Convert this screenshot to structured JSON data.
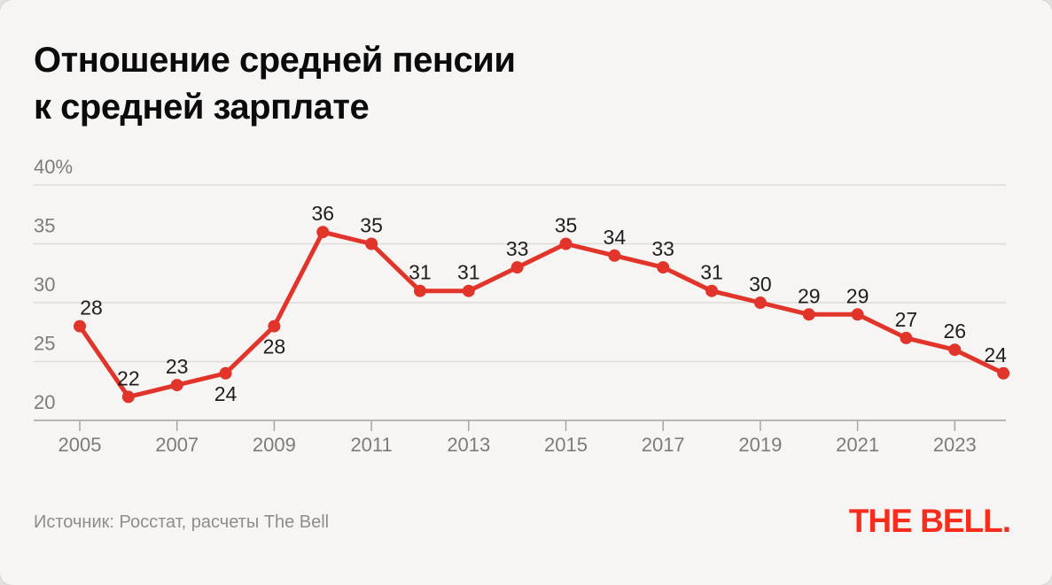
{
  "title": {
    "line1": "Отношение средней пенсии",
    "line2": "к средней зарплате"
  },
  "chart_data": {
    "type": "line",
    "title": "Отношение средней пенсии к средней зарплате",
    "xlabel": "",
    "ylabel": "",
    "unit": "%",
    "x": [
      2005,
      2006,
      2007,
      2008,
      2009,
      2010,
      2011,
      2012,
      2013,
      2014,
      2015,
      2016,
      2017,
      2018,
      2019,
      2020,
      2021,
      2022,
      2023,
      2024
    ],
    "values": [
      28,
      22,
      23,
      24,
      28,
      36,
      35,
      31,
      31,
      33,
      35,
      34,
      33,
      31,
      30,
      29,
      29,
      27,
      26,
      24
    ],
    "point_labels": [
      "28",
      "22",
      "23",
      "24",
      "28",
      "36",
      "35",
      "31",
      "31",
      "33",
      "35",
      "34",
      "33",
      "31",
      "30",
      "29",
      "29",
      "27",
      "26",
      "24"
    ],
    "labels_below_years": [
      2008,
      2009
    ],
    "ylim": [
      20,
      40
    ],
    "yticks": [
      {
        "value": 40,
        "label": "40%"
      },
      {
        "value": 35,
        "label": "35"
      },
      {
        "value": 30,
        "label": "30"
      },
      {
        "value": 25,
        "label": "25"
      },
      {
        "value": 20,
        "label": "20"
      }
    ],
    "xticks": [
      2005,
      2007,
      2009,
      2011,
      2013,
      2015,
      2017,
      2019,
      2021,
      2023
    ],
    "grid": true,
    "legend": false,
    "colors": {
      "line": "#e1342a",
      "point": "#e1342a",
      "grid": "#dddbd8",
      "axis": "#a8a6a4",
      "axis_text": "#7e7c7a",
      "value_text": "#1e1e1e"
    }
  },
  "footer": {
    "source": "Источник: Росстат, расчеты The Bell",
    "logo": "THE BELL."
  },
  "brand": {
    "logo_color": "#f62d1d",
    "background": "#f7f5f3"
  }
}
